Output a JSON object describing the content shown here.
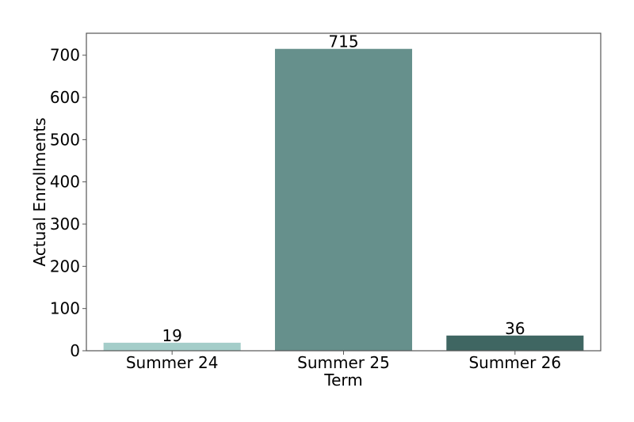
{
  "chart_data": {
    "type": "bar",
    "categories": [
      "Summer 24",
      "Summer 25",
      "Summer 26"
    ],
    "values": [
      19,
      715,
      36
    ],
    "data_labels": [
      "19",
      "715",
      "36"
    ],
    "colors": [
      "#a4cdc9",
      "#66908c",
      "#3f6662"
    ],
    "title": "",
    "xlabel": "Term",
    "ylabel": "Actual Enrollments",
    "ylim": [
      0,
      752
    ],
    "yticks": [
      0,
      100,
      200,
      300,
      400,
      500,
      600,
      700
    ],
    "ytick_labels": [
      "0",
      "100",
      "200",
      "300",
      "400",
      "500",
      "600",
      "700"
    ],
    "grid": false,
    "legend": "none"
  }
}
